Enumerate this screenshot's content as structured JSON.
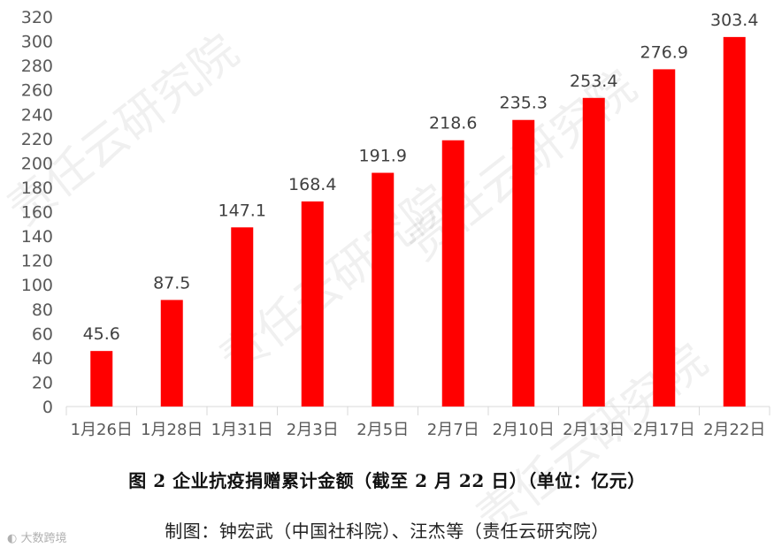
{
  "chart_data": {
    "type": "bar",
    "categories": [
      "1月26日",
      "1月28日",
      "1月31日",
      "2月3日",
      "2月5日",
      "2月7日",
      "2月10日",
      "2月13日",
      "2月17日",
      "2月22日"
    ],
    "values": [
      45.6,
      87.5,
      147.1,
      168.4,
      191.9,
      218.6,
      235.3,
      253.4,
      276.9,
      303.4
    ],
    "value_labels": [
      "45.6",
      "87.5",
      "147.1",
      "168.4",
      "191.9",
      "218.6",
      "235.3",
      "253.4",
      "276.9",
      "303.4"
    ],
    "yticks": [
      0,
      20,
      40,
      60,
      80,
      100,
      120,
      140,
      160,
      180,
      200,
      220,
      240,
      260,
      280,
      300,
      320
    ],
    "ylim": [
      0,
      320
    ],
    "grid": false,
    "bar_color": "#FF0000",
    "title": "图 2  企业抗疫捐赠累计金额（截至 2 月 22 日）（单位：亿元）",
    "source": "制图：钟宏武（中国社科院）、汪杰等（责任云研究院）"
  },
  "watermark": "责任云研究院",
  "logo_text": "大数跨境",
  "colors": {
    "bar": "#FF0000",
    "axis": "#d9d9d9",
    "text": "#595959"
  }
}
